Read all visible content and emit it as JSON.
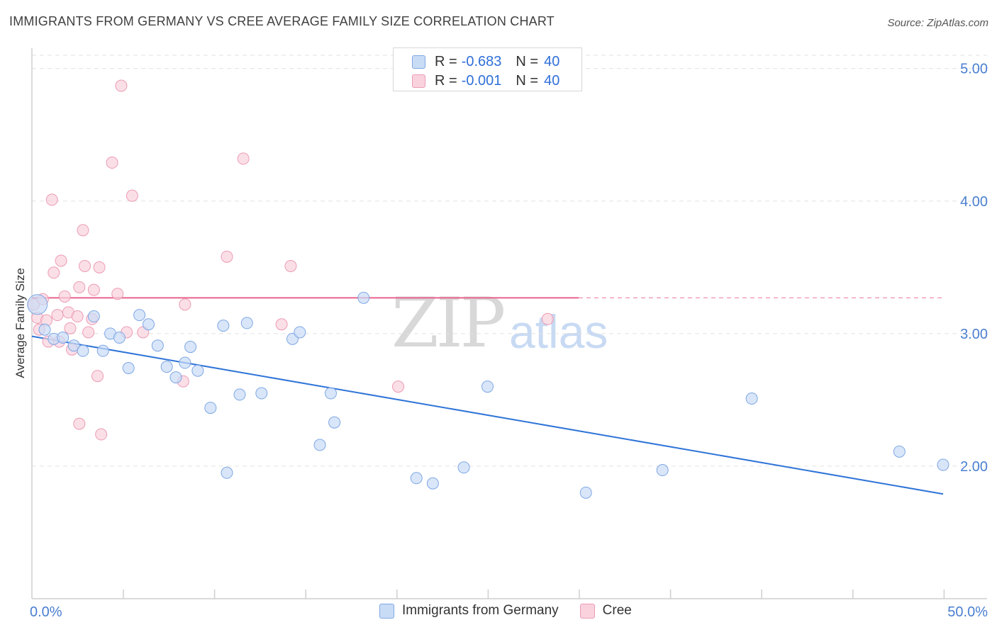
{
  "title": "IMMIGRANTS FROM GERMANY VS CREE AVERAGE FAMILY SIZE CORRELATION CHART",
  "source": "Source: ZipAtlas.com",
  "watermark": {
    "zip": "ZIP",
    "atlas": "atlas"
  },
  "legend": {
    "rows": [
      {
        "r_label": "R =",
        "r_value": "-0.683",
        "n_label": "N =",
        "n_value": "40"
      },
      {
        "r_label": "R =",
        "r_value": "-0.001",
        "n_label": "N =",
        "n_value": "40"
      }
    ]
  },
  "bottom_legend": [
    "Immigrants from Germany",
    "Cree"
  ],
  "colors": {
    "germany_fill": "#c9dcf6",
    "germany_stroke": "#7ea7e4",
    "germany_line": "#2f74d8",
    "cree_fill": "#f9d2dd",
    "cree_stroke": "#ec9bb3",
    "cree_line": "#e8648d",
    "tick": "#4a7fd0",
    "grid": "#e2e2e2"
  },
  "chart_data": {
    "type": "scatter",
    "title": "IMMIGRANTS FROM GERMANY VS CREE AVERAGE FAMILY SIZE CORRELATION CHART",
    "xlabel": "",
    "ylabel": "Average Family Size",
    "xlim": [
      0,
      50
    ],
    "ylim": [
      1.0,
      5.1
    ],
    "x_tick_labels": [
      "0.0%",
      "50.0%"
    ],
    "y_ticks": [
      2.0,
      3.0,
      4.0,
      5.0
    ],
    "y_tick_labels": [
      "2.00",
      "3.00",
      "4.00",
      "5.00"
    ],
    "series": [
      {
        "name": "Immigrants from Germany",
        "r": -0.683,
        "n": 40,
        "trend": {
          "x0": 0,
          "y0": 2.98,
          "x1": 50,
          "y1": 1.79
        },
        "points": [
          [
            0.3,
            3.22
          ],
          [
            0.7,
            3.03
          ],
          [
            1.2,
            2.96
          ],
          [
            1.7,
            2.97
          ],
          [
            2.3,
            2.91
          ],
          [
            2.8,
            2.87
          ],
          [
            3.4,
            3.13
          ],
          [
            3.9,
            2.87
          ],
          [
            4.3,
            3.0
          ],
          [
            4.8,
            2.97
          ],
          [
            5.3,
            2.74
          ],
          [
            5.9,
            3.14
          ],
          [
            6.4,
            3.07
          ],
          [
            6.9,
            2.91
          ],
          [
            7.4,
            2.75
          ],
          [
            7.9,
            2.67
          ],
          [
            8.4,
            2.78
          ],
          [
            8.7,
            2.9
          ],
          [
            9.1,
            2.72
          ],
          [
            9.8,
            2.44
          ],
          [
            10.5,
            3.06
          ],
          [
            10.7,
            1.95
          ],
          [
            11.4,
            2.54
          ],
          [
            11.8,
            3.08
          ],
          [
            12.6,
            2.55
          ],
          [
            14.3,
            2.96
          ],
          [
            14.7,
            3.01
          ],
          [
            15.8,
            2.16
          ],
          [
            16.4,
            2.55
          ],
          [
            16.6,
            2.33
          ],
          [
            18.2,
            3.27
          ],
          [
            21.1,
            1.91
          ],
          [
            22.0,
            1.87
          ],
          [
            23.7,
            1.99
          ],
          [
            25.0,
            2.6
          ],
          [
            30.4,
            1.8
          ],
          [
            34.6,
            1.97
          ],
          [
            39.5,
            2.51
          ],
          [
            47.6,
            2.11
          ],
          [
            50.0,
            2.01
          ]
        ]
      },
      {
        "name": "Cree",
        "r": -0.001,
        "n": 40,
        "trend": {
          "x0": 0,
          "y0": 3.27,
          "x1": 30,
          "y1": 3.27,
          "dashed_to": 50
        },
        "points": [
          [
            0.1,
            3.22
          ],
          [
            0.3,
            3.12
          ],
          [
            0.4,
            3.03
          ],
          [
            0.6,
            3.26
          ],
          [
            0.8,
            3.1
          ],
          [
            0.9,
            2.94
          ],
          [
            1.1,
            4.01
          ],
          [
            1.2,
            3.46
          ],
          [
            1.4,
            3.14
          ],
          [
            1.6,
            3.55
          ],
          [
            1.8,
            3.28
          ],
          [
            2.0,
            3.16
          ],
          [
            2.1,
            3.04
          ],
          [
            2.2,
            2.88
          ],
          [
            2.5,
            3.13
          ],
          [
            2.6,
            3.35
          ],
          [
            2.8,
            3.78
          ],
          [
            2.9,
            3.51
          ],
          [
            3.1,
            3.01
          ],
          [
            3.3,
            3.11
          ],
          [
            3.4,
            3.33
          ],
          [
            3.6,
            2.68
          ],
          [
            3.7,
            3.5
          ],
          [
            3.8,
            2.24
          ],
          [
            4.4,
            4.29
          ],
          [
            4.7,
            3.3
          ],
          [
            4.9,
            4.87
          ],
          [
            5.2,
            3.01
          ],
          [
            5.5,
            4.04
          ],
          [
            2.6,
            2.32
          ],
          [
            8.3,
            2.64
          ],
          [
            8.4,
            3.22
          ],
          [
            10.7,
            3.58
          ],
          [
            11.6,
            4.32
          ],
          [
            13.7,
            3.07
          ],
          [
            14.2,
            3.51
          ],
          [
            20.1,
            2.6
          ],
          [
            28.3,
            3.11
          ],
          [
            1.5,
            2.94
          ],
          [
            6.1,
            3.01
          ]
        ]
      }
    ]
  }
}
